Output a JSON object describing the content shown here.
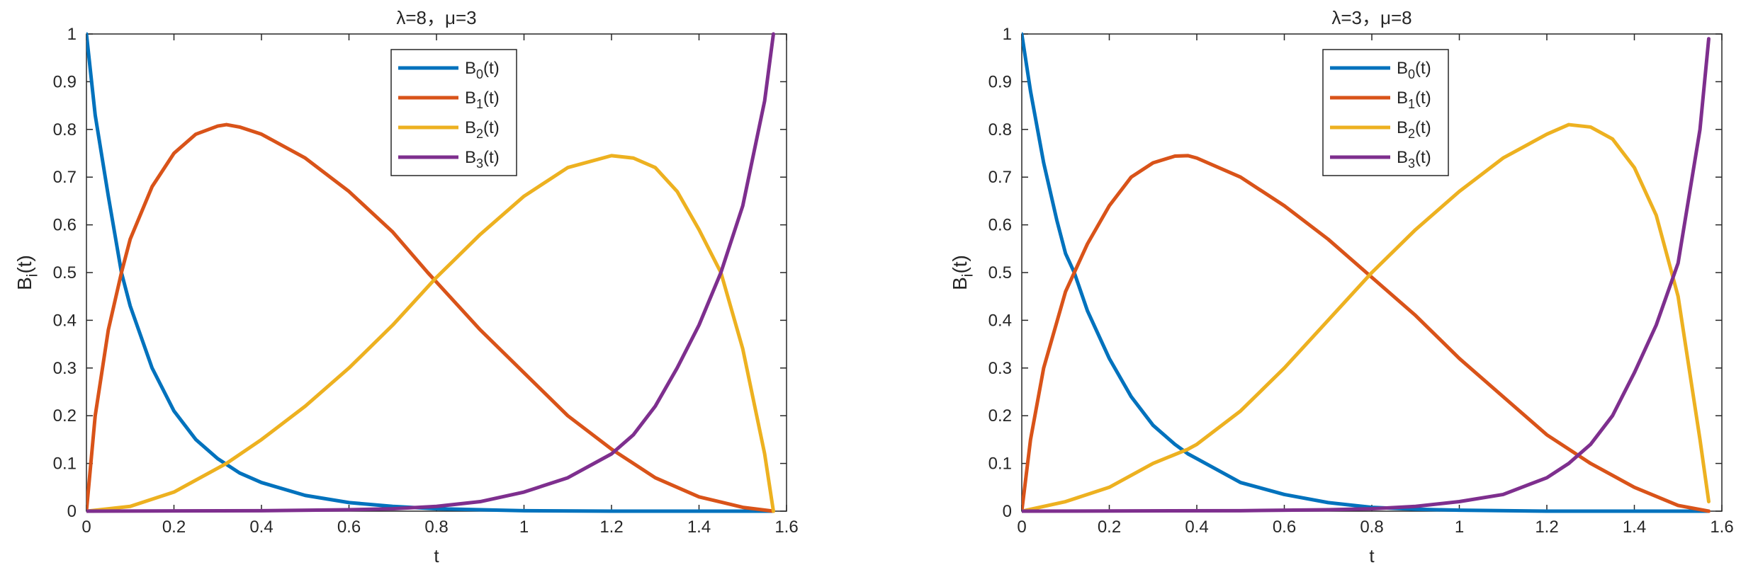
{
  "chart_data": [
    {
      "type": "line",
      "title": "λ=8，μ=3",
      "xlabel": "t",
      "ylabel": {
        "base": "B",
        "sub": "i",
        "rest": "(t)"
      },
      "xlim": [
        0,
        1.6
      ],
      "ylim": [
        0,
        1
      ],
      "xticks": [
        0,
        0.2,
        0.4,
        0.6,
        0.8,
        1,
        1.2,
        1.4,
        1.6
      ],
      "yticks": [
        0,
        0.1,
        0.2,
        0.3,
        0.4,
        0.5,
        0.6,
        0.7,
        0.8,
        0.9,
        1
      ],
      "grid": false,
      "legend_position": "top-center",
      "series": [
        {
          "name": "B0(t)",
          "label_base": "B",
          "label_sub": "0",
          "label_rest": "(t)",
          "color": "#0072BD",
          "x": [
            0,
            0.02,
            0.05,
            0.08,
            0.1,
            0.15,
            0.2,
            0.25,
            0.3,
            0.35,
            0.4,
            0.5,
            0.6,
            0.7,
            0.8,
            0.9,
            1.0,
            1.2,
            1.4,
            1.57
          ],
          "y": [
            1.0,
            0.83,
            0.66,
            0.5,
            0.43,
            0.3,
            0.21,
            0.15,
            0.11,
            0.08,
            0.06,
            0.033,
            0.018,
            0.01,
            0.005,
            0.003,
            0.001,
            0.0,
            0.0,
            0.0
          ]
        },
        {
          "name": "B1(t)",
          "label_base": "B",
          "label_sub": "1",
          "label_rest": "(t)",
          "color": "#D95319",
          "x": [
            0,
            0.02,
            0.05,
            0.08,
            0.1,
            0.15,
            0.2,
            0.25,
            0.3,
            0.32,
            0.35,
            0.4,
            0.5,
            0.6,
            0.7,
            0.78,
            0.8,
            0.9,
            1.0,
            1.1,
            1.2,
            1.3,
            1.4,
            1.5,
            1.57
          ],
          "y": [
            0,
            0.2,
            0.38,
            0.5,
            0.57,
            0.68,
            0.75,
            0.79,
            0.807,
            0.81,
            0.805,
            0.79,
            0.74,
            0.67,
            0.585,
            0.5,
            0.48,
            0.38,
            0.29,
            0.2,
            0.13,
            0.07,
            0.03,
            0.008,
            0
          ]
        },
        {
          "name": "B2(t)",
          "label_base": "B",
          "label_sub": "2",
          "label_rest": "(t)",
          "color": "#EDB120",
          "x": [
            0,
            0.1,
            0.2,
            0.3,
            0.32,
            0.4,
            0.5,
            0.6,
            0.7,
            0.78,
            0.8,
            0.9,
            1.0,
            1.1,
            1.2,
            1.25,
            1.3,
            1.35,
            1.4,
            1.45,
            1.5,
            1.55,
            1.57
          ],
          "y": [
            0,
            0.01,
            0.04,
            0.09,
            0.1,
            0.15,
            0.22,
            0.3,
            0.39,
            0.47,
            0.49,
            0.58,
            0.66,
            0.72,
            0.745,
            0.74,
            0.72,
            0.67,
            0.59,
            0.5,
            0.34,
            0.12,
            0
          ]
        },
        {
          "name": "B3(t)",
          "label_base": "B",
          "label_sub": "3",
          "label_rest": "(t)",
          "color": "#7E2F8E",
          "x": [
            0,
            0.4,
            0.6,
            0.7,
            0.8,
            0.9,
            1.0,
            1.1,
            1.2,
            1.25,
            1.3,
            1.35,
            1.4,
            1.45,
            1.5,
            1.55,
            1.57
          ],
          "y": [
            0,
            0.001,
            0.003,
            0.005,
            0.01,
            0.02,
            0.04,
            0.07,
            0.12,
            0.16,
            0.22,
            0.3,
            0.39,
            0.5,
            0.64,
            0.86,
            1.0
          ]
        }
      ]
    },
    {
      "type": "line",
      "title": "λ=3，μ=8",
      "xlabel": "t",
      "ylabel": {
        "base": "B",
        "sub": "i",
        "rest": "(t)"
      },
      "xlim": [
        0,
        1.6
      ],
      "ylim": [
        0,
        1
      ],
      "xticks": [
        0,
        0.2,
        0.4,
        0.6,
        0.8,
        1,
        1.2,
        1.4,
        1.6
      ],
      "yticks": [
        0,
        0.1,
        0.2,
        0.3,
        0.4,
        0.5,
        0.6,
        0.7,
        0.8,
        0.9,
        1
      ],
      "grid": false,
      "legend_position": "top-center",
      "series": [
        {
          "name": "B0(t)",
          "label_base": "B",
          "label_sub": "0",
          "label_rest": "(t)",
          "color": "#0072BD",
          "x": [
            0,
            0.02,
            0.05,
            0.08,
            0.1,
            0.12,
            0.15,
            0.2,
            0.25,
            0.3,
            0.35,
            0.38,
            0.4,
            0.5,
            0.6,
            0.7,
            0.8,
            0.9,
            1.0,
            1.2,
            1.4,
            1.57
          ],
          "y": [
            1.0,
            0.88,
            0.73,
            0.61,
            0.54,
            0.5,
            0.42,
            0.32,
            0.24,
            0.18,
            0.14,
            0.12,
            0.11,
            0.06,
            0.035,
            0.018,
            0.008,
            0.004,
            0.002,
            0.0,
            0.0,
            0.0
          ]
        },
        {
          "name": "B1(t)",
          "label_base": "B",
          "label_sub": "1",
          "label_rest": "(t)",
          "color": "#D95319",
          "x": [
            0,
            0.02,
            0.05,
            0.1,
            0.12,
            0.15,
            0.2,
            0.25,
            0.3,
            0.35,
            0.38,
            0.4,
            0.5,
            0.6,
            0.7,
            0.8,
            0.9,
            1.0,
            1.1,
            1.2,
            1.3,
            1.4,
            1.5,
            1.57
          ],
          "y": [
            0,
            0.15,
            0.3,
            0.46,
            0.5,
            0.56,
            0.64,
            0.7,
            0.73,
            0.744,
            0.745,
            0.74,
            0.7,
            0.64,
            0.57,
            0.49,
            0.41,
            0.32,
            0.24,
            0.16,
            0.1,
            0.05,
            0.012,
            0
          ]
        },
        {
          "name": "B2(t)",
          "label_base": "B",
          "label_sub": "2",
          "label_rest": "(t)",
          "color": "#EDB120",
          "x": [
            0,
            0.1,
            0.2,
            0.3,
            0.38,
            0.4,
            0.5,
            0.6,
            0.7,
            0.8,
            0.9,
            1.0,
            1.1,
            1.2,
            1.25,
            1.3,
            1.35,
            1.4,
            1.45,
            1.5,
            1.55,
            1.57
          ],
          "y": [
            0,
            0.02,
            0.05,
            0.1,
            0.13,
            0.14,
            0.21,
            0.3,
            0.4,
            0.5,
            0.59,
            0.67,
            0.74,
            0.79,
            0.81,
            0.805,
            0.78,
            0.72,
            0.62,
            0.45,
            0.15,
            0.02
          ]
        },
        {
          "name": "B3(t)",
          "label_base": "B",
          "label_sub": "3",
          "label_rest": "(t)",
          "color": "#7E2F8E",
          "x": [
            0,
            0.5,
            0.7,
            0.8,
            0.9,
            1.0,
            1.1,
            1.2,
            1.25,
            1.3,
            1.35,
            1.4,
            1.45,
            1.5,
            1.55,
            1.57
          ],
          "y": [
            0,
            0.001,
            0.003,
            0.005,
            0.01,
            0.02,
            0.035,
            0.07,
            0.1,
            0.14,
            0.2,
            0.29,
            0.39,
            0.52,
            0.8,
            0.99
          ]
        }
      ]
    }
  ]
}
